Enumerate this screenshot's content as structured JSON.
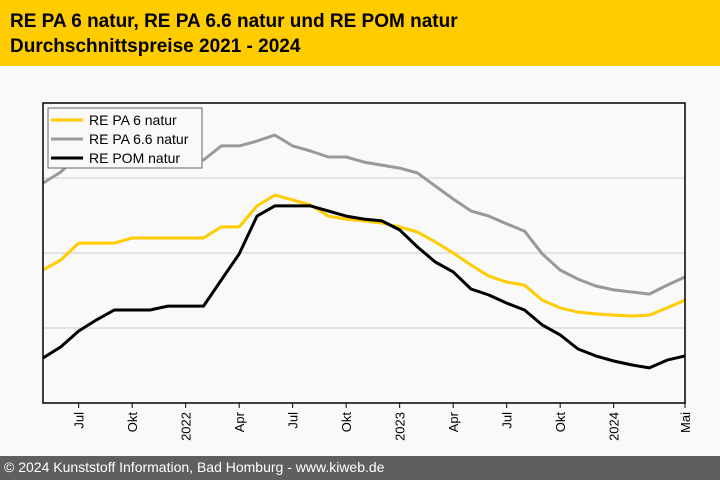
{
  "header": {
    "title_line1": "RE PA 6 natur, RE PA 6.6 natur und RE POM natur",
    "title_line2": "Durchschnittspreise 2021 - 2024"
  },
  "footer": {
    "credit": "© 2024 Kunststoff Information, Bad Homburg - www.kiweb.de"
  },
  "colors": {
    "header_bg": "#ffcc00",
    "footer_bg": "#5f5f5f",
    "pa6": "#ffcc00",
    "pa66": "#999999",
    "pom": "#000000"
  },
  "chart_data": {
    "type": "line",
    "title": "RE PA 6 natur, RE PA 6.6 natur und RE POM natur – Durchschnittspreise 2021 - 2024",
    "xlabel": "",
    "ylabel": "",
    "x_range": [
      "2021-05",
      "2024-05"
    ],
    "ylim": [
      0,
      100
    ],
    "y_unit": "relative index (no y-axis labels shown)",
    "grid": "horizontal",
    "gridline_values": [
      25,
      50,
      75
    ],
    "legend_position": "top-left",
    "x_ticks": [
      {
        "label": "Jul",
        "month_index": 2
      },
      {
        "label": "Okt",
        "month_index": 5
      },
      {
        "label": "2022",
        "month_index": 8
      },
      {
        "label": "Apr",
        "month_index": 11
      },
      {
        "label": "Jul",
        "month_index": 14
      },
      {
        "label": "Okt",
        "month_index": 17
      },
      {
        "label": "2023",
        "month_index": 20
      },
      {
        "label": "Apr",
        "month_index": 23
      },
      {
        "label": "Jul",
        "month_index": 26
      },
      {
        "label": "Okt",
        "month_index": 29
      },
      {
        "label": "2024",
        "month_index": 32
      },
      {
        "label": "Mai",
        "month_index": 36
      }
    ],
    "x": [
      "2021-05",
      "2021-06",
      "2021-07",
      "2021-08",
      "2021-09",
      "2021-10",
      "2021-11",
      "2021-12",
      "2022-01",
      "2022-02",
      "2022-03",
      "2022-04",
      "2022-05",
      "2022-06",
      "2022-07",
      "2022-08",
      "2022-09",
      "2022-10",
      "2022-11",
      "2022-12",
      "2023-01",
      "2023-02",
      "2023-03",
      "2023-04",
      "2023-05",
      "2023-06",
      "2023-07",
      "2023-08",
      "2023-09",
      "2023-10",
      "2023-11",
      "2023-12",
      "2024-01",
      "2024-02",
      "2024-03",
      "2024-04",
      "2024-05"
    ],
    "series": [
      {
        "name": "RE PA 6 natur",
        "color": "#ffcc00",
        "values": [
          44.3,
          47.7,
          53.3,
          53.3,
          53.3,
          55.0,
          55.0,
          55.0,
          55.0,
          55.0,
          58.7,
          58.7,
          65.7,
          69.3,
          67.7,
          66.0,
          62.3,
          61.3,
          60.7,
          60.0,
          58.7,
          57.0,
          53.7,
          50.0,
          46.0,
          42.3,
          40.3,
          39.3,
          34.3,
          31.7,
          30.3,
          29.7,
          29.3,
          29.0,
          29.3,
          31.7,
          34.3
        ]
      },
      {
        "name": "RE PA 6.6 natur",
        "color": "#999999",
        "values": [
          73.3,
          77.0,
          82.7,
          82.7,
          82.7,
          81.0,
          81.0,
          81.0,
          81.0,
          81.0,
          85.7,
          85.7,
          87.3,
          89.3,
          85.7,
          84.0,
          82.0,
          82.0,
          80.3,
          79.3,
          78.3,
          76.7,
          72.3,
          68.0,
          64.0,
          62.3,
          59.7,
          57.3,
          49.7,
          44.3,
          41.3,
          39.0,
          37.7,
          37.0,
          36.3,
          39.3,
          42.0
        ]
      },
      {
        "name": "RE POM natur",
        "color": "#000000",
        "values": [
          15.0,
          18.7,
          24.0,
          27.7,
          31.0,
          31.0,
          31.0,
          32.3,
          32.3,
          32.3,
          41.0,
          49.7,
          62.3,
          65.7,
          65.7,
          65.7,
          64.0,
          62.3,
          61.3,
          60.7,
          57.7,
          52.0,
          47.0,
          43.7,
          38.0,
          36.0,
          33.3,
          31.0,
          26.0,
          22.7,
          18.0,
          15.7,
          14.0,
          12.7,
          11.7,
          14.3,
          15.7
        ]
      }
    ]
  }
}
